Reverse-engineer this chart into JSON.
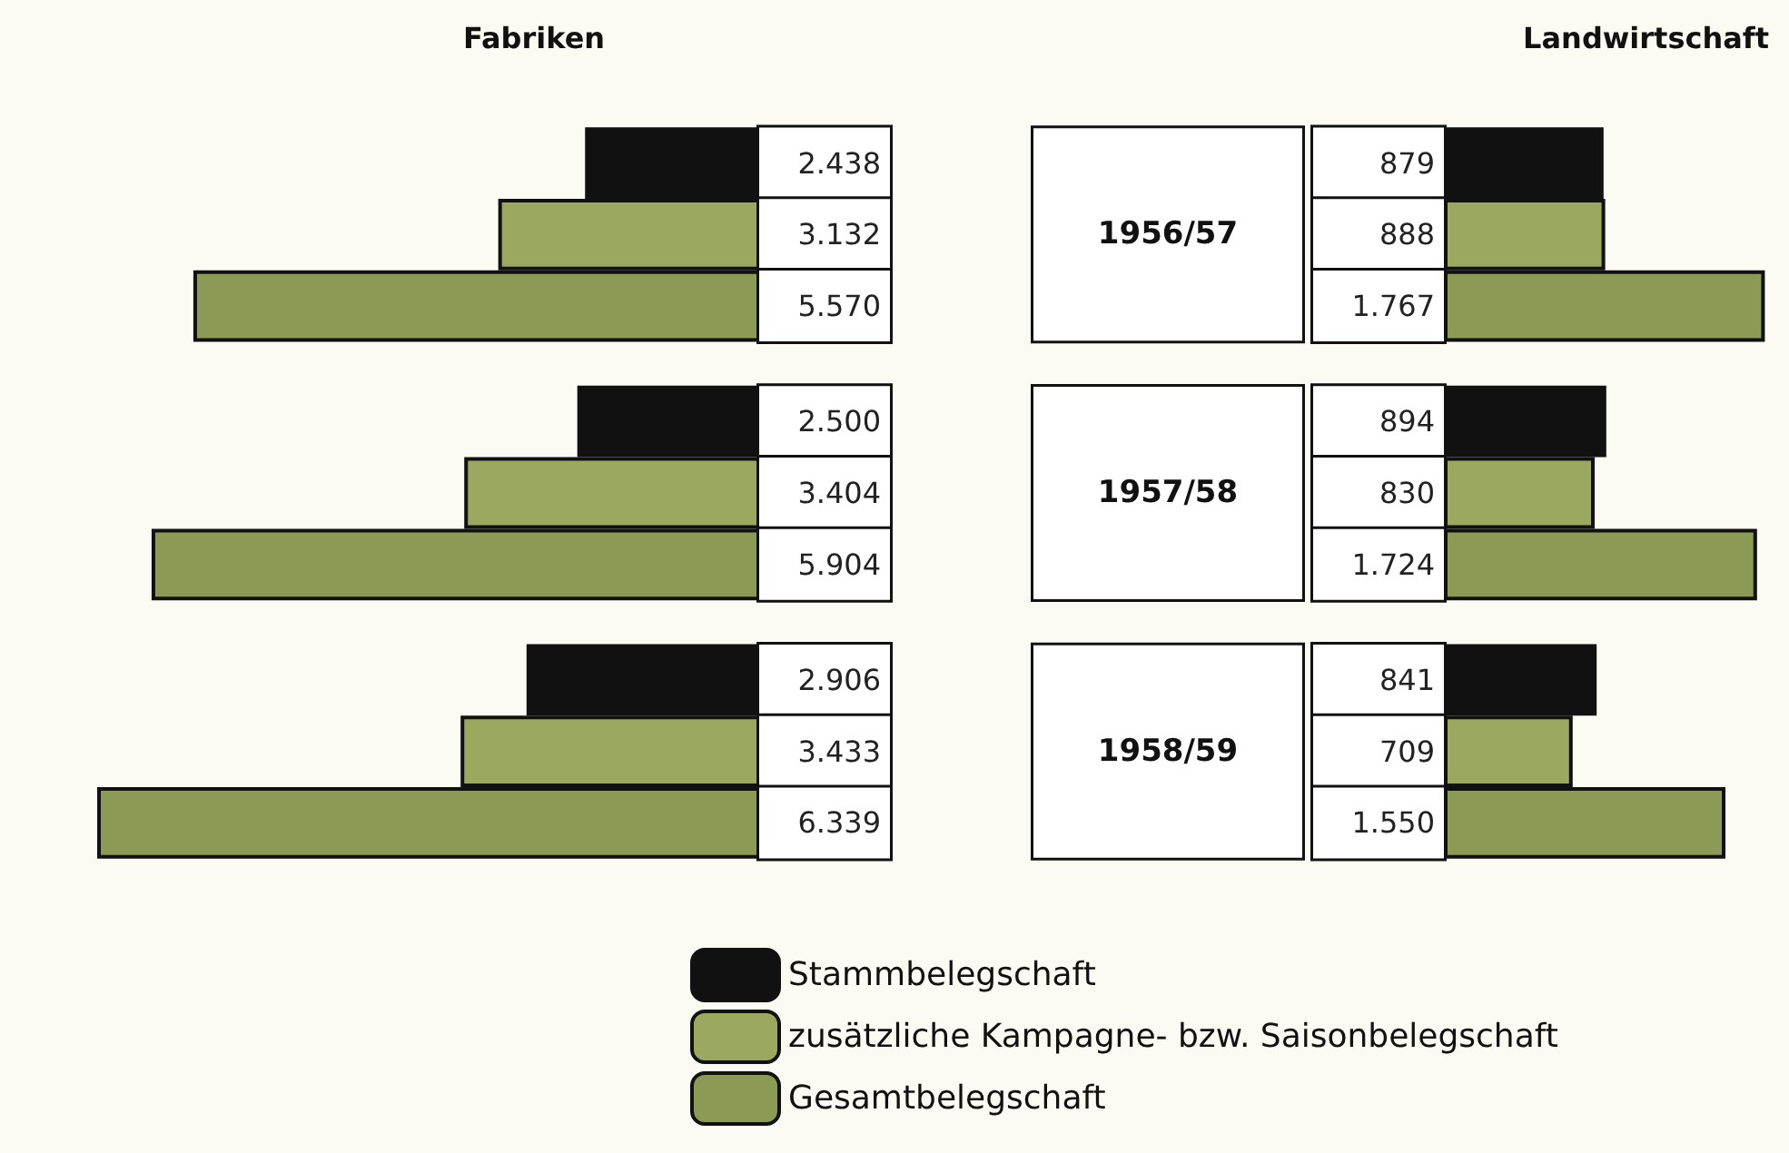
{
  "chart_data": [
    {
      "type": "bar",
      "orientation": "horizontal",
      "title": "Fabriken",
      "categories": [
        "1956/57",
        "1957/58",
        "1958/59"
      ],
      "tick_labels": "y",
      "legend": "bottom",
      "series": [
        {
          "name": "Stammbelegschaft",
          "color": "#111111",
          "values": [
            2438,
            2500,
            2906
          ],
          "value_labels": [
            "2.438",
            "2.500",
            "2.906"
          ]
        },
        {
          "name": "zusätzliche Kampagne- bzw. Saisonbelegschaft",
          "color": "#9aa860",
          "values": [
            3132,
            3404,
            3433
          ],
          "value_labels": [
            "3.132",
            "3.404",
            "3.433"
          ]
        },
        {
          "name": "Gesamtbelegschaft",
          "color": "#8b9a55",
          "values": [
            5570,
            5904,
            6339
          ],
          "value_labels": [
            "5.570",
            "5.904",
            "6.339"
          ]
        }
      ]
    },
    {
      "type": "bar",
      "orientation": "horizontal",
      "title": "Landwirtschaft",
      "categories": [
        "1956/57",
        "1957/58",
        "1958/59"
      ],
      "tick_labels": false,
      "legend": false,
      "series": [
        {
          "color": "#111111",
          "values": [
            879,
            894,
            841
          ],
          "value_labels": [
            "879",
            "894",
            "841"
          ]
        },
        {
          "color": "#9aa860",
          "values": [
            888,
            830,
            709
          ],
          "value_labels": [
            "888",
            "830",
            "709"
          ]
        },
        {
          "color": "#8b9a55",
          "values": [
            1767,
            1724,
            1550
          ],
          "value_labels": [
            "1.767",
            "1.724",
            "1.550"
          ]
        }
      ]
    }
  ]
}
